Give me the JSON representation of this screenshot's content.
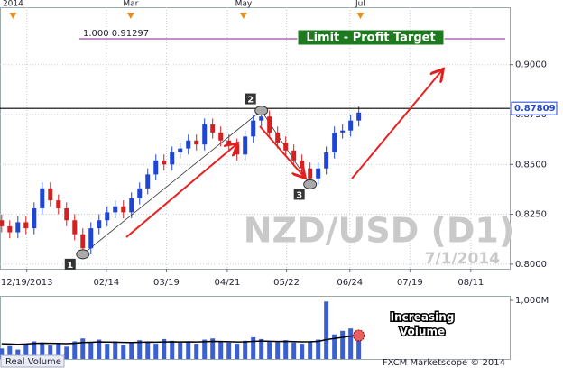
{
  "chart_data": {
    "type": "candlestick",
    "title": "NZD/USD (D1)",
    "subtitle": "7/1/2014",
    "open": [
      0.822,
      0.819,
      0.816,
      0.821,
      0.818,
      0.828,
      0.838,
      0.832,
      0.828,
      0.822,
      0.815,
      0.808,
      0.818,
      0.822,
      0.826,
      0.829,
      0.826,
      0.833,
      0.838,
      0.845,
      0.852,
      0.85,
      0.856,
      0.858,
      0.862,
      0.86,
      0.87,
      0.866,
      0.862,
      0.86,
      0.855,
      0.864,
      0.872,
      0.874,
      0.866,
      0.861,
      0.857,
      0.852,
      0.848,
      0.843,
      0.848,
      0.856,
      0.866,
      0.867,
      0.872
    ],
    "high": [
      0.825,
      0.822,
      0.824,
      0.824,
      0.831,
      0.841,
      0.841,
      0.835,
      0.831,
      0.825,
      0.818,
      0.821,
      0.825,
      0.829,
      0.832,
      0.832,
      0.836,
      0.841,
      0.848,
      0.855,
      0.855,
      0.859,
      0.861,
      0.865,
      0.865,
      0.873,
      0.873,
      0.869,
      0.865,
      0.863,
      0.867,
      0.875,
      0.877,
      0.877,
      0.869,
      0.864,
      0.86,
      0.855,
      0.851,
      0.851,
      0.859,
      0.869,
      0.87,
      0.875,
      0.879
    ],
    "low": [
      0.816,
      0.813,
      0.813,
      0.815,
      0.815,
      0.825,
      0.829,
      0.825,
      0.819,
      0.812,
      0.805,
      0.805,
      0.815,
      0.819,
      0.823,
      0.823,
      0.823,
      0.83,
      0.835,
      0.842,
      0.847,
      0.847,
      0.853,
      0.855,
      0.857,
      0.857,
      0.863,
      0.859,
      0.857,
      0.852,
      0.852,
      0.861,
      0.869,
      0.863,
      0.858,
      0.854,
      0.849,
      0.845,
      0.84,
      0.84,
      0.845,
      0.853,
      0.863,
      0.864,
      0.869
    ],
    "close": [
      0.819,
      0.816,
      0.821,
      0.818,
      0.828,
      0.838,
      0.832,
      0.828,
      0.822,
      0.815,
      0.808,
      0.818,
      0.822,
      0.826,
      0.829,
      0.826,
      0.833,
      0.838,
      0.845,
      0.852,
      0.85,
      0.856,
      0.858,
      0.862,
      0.86,
      0.87,
      0.866,
      0.862,
      0.86,
      0.855,
      0.864,
      0.872,
      0.874,
      0.866,
      0.861,
      0.857,
      0.852,
      0.848,
      0.843,
      0.848,
      0.856,
      0.866,
      0.867,
      0.872,
      0.876
    ],
    "up_color": "#1f45d6",
    "down_color": "#d42020",
    "xlim": [
      -0.2,
      62.6
    ],
    "xticks": [
      {
        "value": 3.1,
        "label": "12/19/2013"
      },
      {
        "value": 12.9,
        "label": "02/14"
      },
      {
        "value": 20.3,
        "label": "03/19"
      },
      {
        "value": 27.8,
        "label": "04/21"
      },
      {
        "value": 35.1,
        "label": "05/22"
      },
      {
        "value": 42.9,
        "label": "06/24"
      },
      {
        "value": 50.3,
        "label": "07/19"
      },
      {
        "value": 57.8,
        "label": "08/11"
      }
    ],
    "top_ticks": [
      {
        "value": 1.4,
        "label": "2014"
      },
      {
        "value": 15.9,
        "label": "Mar"
      },
      {
        "value": 29.8,
        "label": "May"
      },
      {
        "value": 44.2,
        "label": "Jul"
      }
    ],
    "ylim": [
      0.7977,
      0.9288
    ],
    "yticks": [
      {
        "value": 0.8,
        "label": "0.8000"
      },
      {
        "value": 0.825,
        "label": "0.8250"
      },
      {
        "value": 0.85,
        "label": "0.8500"
      },
      {
        "value": 0.875,
        "label": "0.8750"
      },
      {
        "value": 0.9,
        "label": "0.9000"
      }
    ],
    "grid": true,
    "current_price": {
      "value": 0.87809,
      "label": "0.87809"
    },
    "target_line": {
      "value": 0.91297,
      "label": "1.000 0.91297",
      "color": "#9b4fa8"
    },
    "target_label": "Limit - Profit Target",
    "points": [
      {
        "index": 10,
        "price": 0.805,
        "label": "1"
      },
      {
        "index": 32,
        "price": 0.877,
        "label": "2"
      },
      {
        "index": 38,
        "price": 0.84,
        "label": "3"
      }
    ],
    "volume": {
      "label": "Real Volume",
      "values": [
        180,
        220,
        160,
        250,
        300,
        280,
        230,
        260,
        210,
        300,
        350,
        280,
        330,
        260,
        300,
        240,
        270,
        320,
        290,
        260,
        340,
        310,
        280,
        300,
        260,
        330,
        350,
        300,
        280,
        260,
        310,
        370,
        340,
        300,
        290,
        320,
        280,
        260,
        300,
        330,
        980,
        420,
        480,
        520,
        450
      ],
      "average": [
        260,
        255,
        250,
        255,
        265,
        270,
        268,
        265,
        262,
        268,
        280,
        285,
        290,
        288,
        286,
        282,
        280,
        285,
        288,
        286,
        290,
        292,
        290,
        292,
        290,
        295,
        300,
        298,
        294,
        290,
        292,
        300,
        305,
        302,
        298,
        300,
        296,
        292,
        294,
        300,
        330,
        350,
        370,
        390,
        400
      ],
      "color": "#3a5fd0",
      "ylim": [
        0,
        1000
      ],
      "yticks": [
        {
          "value": 1000,
          "label": "1,000M"
        }
      ]
    },
    "volume_note": [
      "Increasing",
      "Volume"
    ],
    "footer": "FXCM Marketscope © 2014"
  }
}
